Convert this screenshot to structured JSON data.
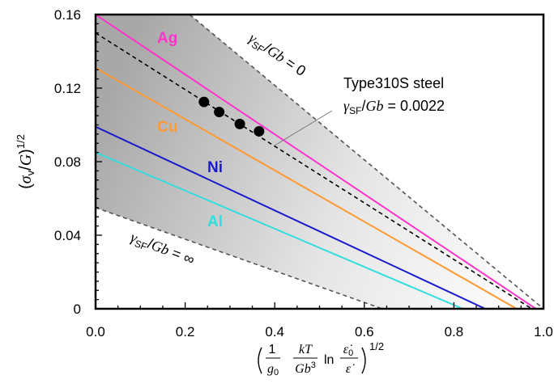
{
  "chart_data": {
    "type": "line",
    "title": "",
    "xlabel": "(1/g0 · kT/Gb³ · ln(ε̇0/ε̇))^1/2",
    "ylabel": "(σv/G)^1/2",
    "xlim": [
      0,
      1.0
    ],
    "ylim": [
      0,
      0.16
    ],
    "xticks": [
      "0.0",
      "0.2",
      "0.4",
      "0.6",
      "0.8",
      "1.0"
    ],
    "yticks": [
      "0",
      "0.04",
      "0.08",
      "0.12",
      "0.16"
    ],
    "grid": false,
    "series": [
      {
        "name": "Ag",
        "color": "#ff33cc",
        "style": "solid",
        "x": [
          0,
          0.983
        ],
        "y": [
          0.16,
          0
        ]
      },
      {
        "name": "Cu",
        "color": "#ff9933",
        "style": "solid",
        "x": [
          0,
          0.94
        ],
        "y": [
          0.131,
          0
        ]
      },
      {
        "name": "Ni",
        "color": "#1a1acc",
        "style": "solid",
        "x": [
          0,
          0.87
        ],
        "y": [
          0.099,
          0
        ]
      },
      {
        "name": "Al",
        "color": "#33dddd",
        "style": "solid",
        "x": [
          0,
          0.82
        ],
        "y": [
          0.085,
          0
        ]
      },
      {
        "name": "",
        "color": "#000000",
        "style": "dashed",
        "x": [
          0,
          0.974
        ],
        "y": [
          0.15,
          0
        ]
      },
      {
        "name": "",
        "color": "#555555",
        "style": "dashed",
        "x": [
          0.21,
          1.0
        ],
        "y": [
          0.16,
          0
        ]
      },
      {
        "name": "",
        "color": "#555555",
        "style": "dashed",
        "x": [
          0,
          0.64
        ],
        "y": [
          0.055,
          0
        ]
      }
    ],
    "points": {
      "name": "Type310S steel",
      "x": [
        0.242,
        0.276,
        0.322,
        0.365
      ],
      "y": [
        0.1125,
        0.107,
        0.1005,
        0.0965
      ]
    },
    "annotations": {
      "sf_zero": "γSF/Gb = 0",
      "sf_inf": "γSF/Gb = ∞",
      "steel_name": "Type310S steel",
      "steel_value": "γSF/Gb = 0.0022"
    }
  }
}
